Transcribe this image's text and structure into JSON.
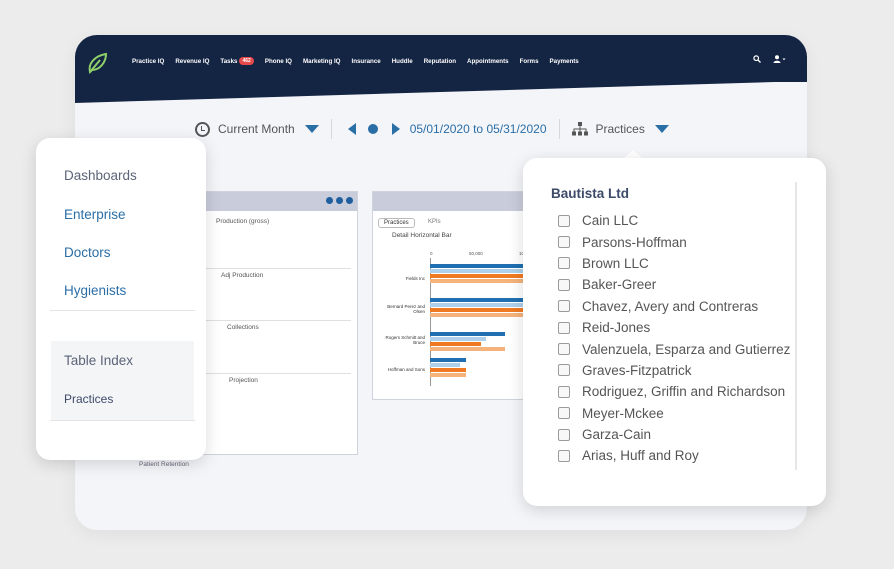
{
  "nav": {
    "items": [
      {
        "label": "Practice IQ"
      },
      {
        "label": "Revenue IQ"
      },
      {
        "label": "Tasks",
        "badge": "462"
      },
      {
        "label": "Phone IQ"
      },
      {
        "label": "Marketing IQ"
      },
      {
        "label": "Insurance"
      },
      {
        "label": "Huddle"
      },
      {
        "label": "Reputation"
      },
      {
        "label": "Appointments"
      },
      {
        "label": "Forms"
      },
      {
        "label": "Payments"
      }
    ]
  },
  "toolbar": {
    "period": "Current Month",
    "date_range": "05/01/2020 to 05/31/2020",
    "practices_label": "Practices"
  },
  "kpi_panel": {
    "rows": [
      "Production (gross)",
      "Adj Production",
      "Collections",
      "Projection"
    ],
    "footer": "Patient Retention"
  },
  "chart_panel": {
    "tabs": [
      "Practices",
      "KPIs"
    ],
    "title": "Detail Horizontal Bar",
    "ticks": [
      "0",
      "50,000",
      "10"
    ]
  },
  "chart_data": {
    "type": "bar",
    "orientation": "horizontal",
    "title": "Detail Horizontal Bar",
    "categories": [
      "Fields Inc",
      "Bernard Perez and Olsen",
      "Rogers Schmitt and Bruce",
      "Hoffman and Sons"
    ],
    "series": [
      {
        "color": "#1f6fb2",
        "values": [
          100000,
          100000,
          75000,
          36000
        ]
      },
      {
        "color": "#aed0ea",
        "values": [
          100000,
          100000,
          56000,
          30000
        ]
      },
      {
        "color": "#f07a22",
        "values": [
          100000,
          100000,
          51000,
          36000
        ]
      },
      {
        "color": "#f5b27a",
        "values": [
          100000,
          100000,
          75000,
          36000
        ]
      }
    ],
    "xlim": [
      0,
      100000
    ]
  },
  "left_menu": {
    "items": [
      "Dashboards",
      "Enterprise",
      "Doctors",
      "Hygienists"
    ],
    "section_title": "Table Index",
    "section_item": "Practices"
  },
  "practices_dropdown": {
    "group": "Bautista Ltd",
    "options": [
      "Cain LLC",
      "Parsons-Hoffman",
      "Brown LLC",
      "Baker-Greer",
      "Chavez, Avery and Contreras",
      "Reid-Jones",
      "Valenzuela, Esparza and Gutierrez",
      "Graves-Fitzpatrick",
      "Rodriguez, Griffin and Richardson",
      "Meyer-Mckee",
      "Garza-Cain",
      "Arias, Huff and Roy"
    ]
  },
  "colors": {
    "navbar": "#142443",
    "accent": "#2a6ea6",
    "badge": "#e64a4a",
    "menu_link": "#2a6ea6",
    "menu_heading": "#5b6478"
  }
}
